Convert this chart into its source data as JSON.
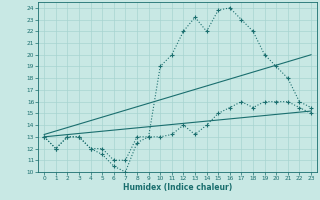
{
  "xlabel": "Humidex (Indice chaleur)",
  "bg_color": "#c8e8e4",
  "grid_color": "#a8d4d0",
  "line_color": "#1a6e6e",
  "xlim": [
    -0.5,
    23.5
  ],
  "ylim": [
    10,
    24.5
  ],
  "xticks": [
    0,
    1,
    2,
    3,
    4,
    5,
    6,
    7,
    8,
    9,
    10,
    11,
    12,
    13,
    14,
    15,
    16,
    17,
    18,
    19,
    20,
    21,
    22,
    23
  ],
  "yticks": [
    10,
    11,
    12,
    13,
    14,
    15,
    16,
    17,
    18,
    19,
    20,
    21,
    22,
    23,
    24
  ],
  "curve1_x": [
    0,
    1,
    2,
    3,
    4,
    5,
    6,
    7,
    8,
    9,
    10,
    11,
    12,
    13,
    14,
    15,
    16,
    17,
    18,
    19,
    20,
    21,
    22,
    23
  ],
  "curve1_y": [
    13,
    12,
    13,
    13,
    12,
    12,
    11,
    11,
    13,
    13,
    19,
    20,
    22,
    23.2,
    22,
    23.8,
    24,
    23,
    22,
    20,
    19,
    18,
    16,
    15.5
  ],
  "curve2_x": [
    0,
    23
  ],
  "curve2_y": [
    13.2,
    20.0
  ],
  "curve3_x": [
    0,
    23
  ],
  "curve3_y": [
    13.0,
    15.2
  ],
  "curve4_x": [
    0,
    1,
    2,
    3,
    4,
    5,
    6,
    7,
    8,
    9,
    10,
    11,
    12,
    13,
    14,
    15,
    16,
    17,
    18,
    19,
    20,
    21,
    22,
    23
  ],
  "curve4_y": [
    13,
    12,
    13,
    13,
    12,
    11.5,
    10.5,
    10,
    12.5,
    13,
    13,
    13.2,
    14,
    13.2,
    14,
    15,
    15.5,
    16,
    15.5,
    16,
    16,
    16,
    15.5,
    15
  ]
}
